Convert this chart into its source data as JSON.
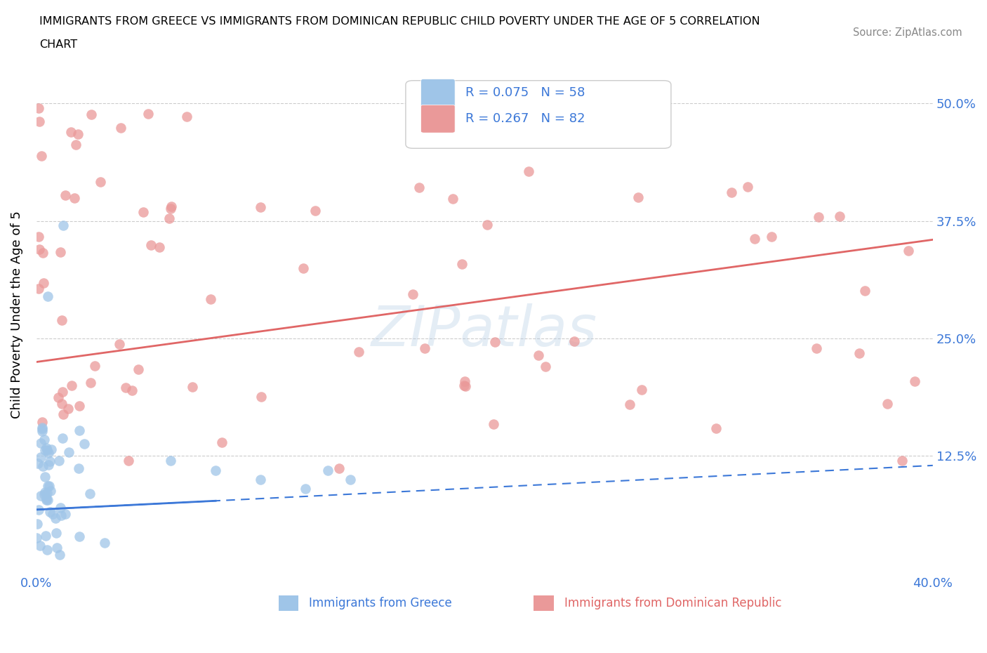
{
  "title_line1": "IMMIGRANTS FROM GREECE VS IMMIGRANTS FROM DOMINICAN REPUBLIC CHILD POVERTY UNDER THE AGE OF 5 CORRELATION",
  "title_line2": "CHART",
  "source_text": "Source: ZipAtlas.com",
  "ylabel": "Child Poverty Under the Age of 5",
  "xlim": [
    0.0,
    0.4
  ],
  "ylim": [
    0.0,
    0.55
  ],
  "xtick_positions": [
    0.0,
    0.1,
    0.2,
    0.3,
    0.4
  ],
  "xticklabels": [
    "0.0%",
    "",
    "",
    "",
    "40.0%"
  ],
  "ytick_positions": [
    0.0,
    0.125,
    0.25,
    0.375,
    0.5
  ],
  "yticklabels": [
    "",
    "12.5%",
    "25.0%",
    "37.5%",
    "50.0%"
  ],
  "legend_label1": "Immigrants from Greece",
  "legend_label2": "Immigrants from Dominican Republic",
  "legend_R1": "R = 0.075",
  "legend_N1": "N = 58",
  "legend_R2": "R = 0.267",
  "legend_N2": "N = 82",
  "color_greece": "#9fc5e8",
  "color_dominican": "#ea9999",
  "color_greece_line": "#3c78d8",
  "color_dominican_line": "#e06666",
  "watermark": "ZIPatlas",
  "greece_line_start_y": 0.068,
  "greece_line_end_y": 0.115,
  "dominican_line_start_y": 0.225,
  "dominican_line_end_y": 0.355
}
